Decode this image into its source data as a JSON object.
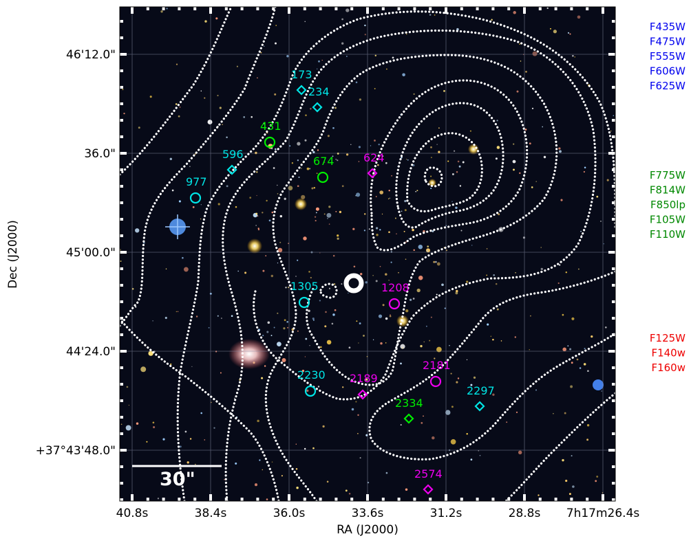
{
  "axes": {
    "xlabel": "RA (J2000)",
    "ylabel": "Dec (J2000)",
    "xticks": [
      "40.8s",
      "38.4s",
      "36.0s",
      "33.6s",
      "31.2s",
      "28.8s",
      "7h17m26.4s"
    ],
    "yticks": [
      "46'12.0\"",
      "36.0\"",
      "45'00.0\"",
      "44'24.0\"",
      "+37°43'48.0\""
    ]
  },
  "scalebar": {
    "label": "30\""
  },
  "filters": {
    "blue": {
      "color": "#0000ee",
      "items": [
        "F435W",
        "F475W",
        "F555W",
        "F606W",
        "F625W"
      ]
    },
    "green": {
      "color": "#008800",
      "items": [
        "F775W",
        "F814W",
        "F850lp",
        "F105W",
        "F110W"
      ]
    },
    "red": {
      "color": "#ee0000",
      "items": [
        "F125W",
        "F140w",
        "F160w"
      ]
    }
  },
  "colors": {
    "cyan": "#00e5e5",
    "green": "#00ee00",
    "magenta": "#ee00ee",
    "contour": "#ffffff"
  },
  "markers": [
    {
      "id": "173",
      "shape": "diamond",
      "color": "cyan"
    },
    {
      "id": "234",
      "shape": "diamond",
      "color": "cyan"
    },
    {
      "id": "431",
      "shape": "circle",
      "color": "green"
    },
    {
      "id": "596",
      "shape": "diamond",
      "color": "cyan"
    },
    {
      "id": "674",
      "shape": "circle",
      "color": "green"
    },
    {
      "id": "624",
      "shape": "diamond",
      "color": "magenta"
    },
    {
      "id": "977",
      "shape": "circle",
      "color": "cyan"
    },
    {
      "id": "1305",
      "shape": "circle",
      "color": "cyan"
    },
    {
      "id": "1208",
      "shape": "circle",
      "color": "magenta"
    },
    {
      "id": "2230",
      "shape": "circle",
      "color": "cyan"
    },
    {
      "id": "2189",
      "shape": "diamond",
      "color": "magenta"
    },
    {
      "id": "2181",
      "shape": "circle",
      "color": "magenta"
    },
    {
      "id": "2297",
      "shape": "diamond",
      "color": "cyan"
    },
    {
      "id": "2334",
      "shape": "diamond",
      "color": "green"
    },
    {
      "id": "2574",
      "shape": "diamond",
      "color": "magenta"
    }
  ]
}
